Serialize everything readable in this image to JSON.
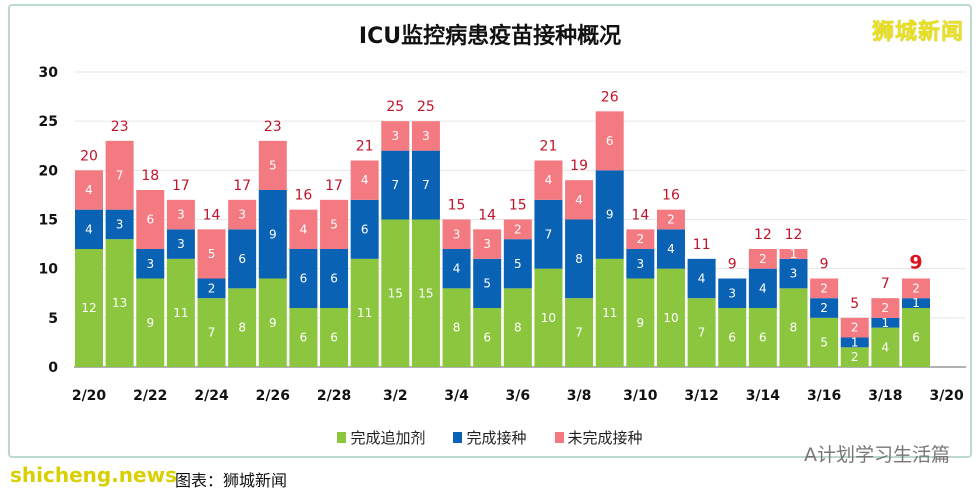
{
  "chart_data": {
    "type": "bar",
    "stacked": true,
    "title": "ICU监控病患疫苗接种概况",
    "categories": [
      "2/20",
      "2/21",
      "2/22",
      "2/23",
      "2/24",
      "2/25",
      "2/26",
      "2/27",
      "2/28",
      "3/1",
      "3/2",
      "3/3",
      "3/4",
      "3/5",
      "3/6",
      "3/7",
      "3/8",
      "3/9",
      "3/10",
      "3/11",
      "3/12",
      "3/13",
      "3/14",
      "3/15",
      "3/16",
      "3/17",
      "3/18",
      "3/19"
    ],
    "x_tick_labels": [
      "2/20",
      "2/22",
      "2/24",
      "2/26",
      "2/28",
      "3/2",
      "3/4",
      "3/6",
      "3/8",
      "3/10",
      "3/12",
      "3/14",
      "3/16",
      "3/18",
      "3/20"
    ],
    "series": [
      {
        "name": "完成追加剂",
        "color": "#8cc63f",
        "values": [
          12,
          13,
          9,
          11,
          7,
          8,
          9,
          6,
          6,
          11,
          15,
          15,
          8,
          6,
          8,
          10,
          7,
          11,
          9,
          10,
          7,
          6,
          6,
          8,
          5,
          2,
          4,
          6
        ]
      },
      {
        "name": "完成接种",
        "color": "#0a62b5",
        "values": [
          4,
          3,
          3,
          3,
          2,
          6,
          9,
          6,
          6,
          6,
          7,
          7,
          4,
          5,
          5,
          7,
          8,
          9,
          3,
          4,
          4,
          3,
          4,
          3,
          2,
          1,
          1,
          1
        ]
      },
      {
        "name": "未完成接种",
        "color": "#f47a82",
        "values": [
          4,
          7,
          6,
          3,
          5,
          3,
          5,
          4,
          5,
          4,
          3,
          3,
          3,
          3,
          2,
          4,
          4,
          6,
          2,
          2,
          0,
          0,
          2,
          1,
          2,
          2,
          2,
          2
        ]
      }
    ],
    "totals": [
      20,
      23,
      18,
      17,
      14,
      17,
      23,
      16,
      17,
      21,
      25,
      25,
      15,
      14,
      15,
      21,
      19,
      26,
      14,
      16,
      11,
      9,
      12,
      12,
      9,
      5,
      7,
      9
    ],
    "yticks": [
      0,
      5,
      10,
      15,
      20,
      25,
      30
    ],
    "ylim": [
      0,
      30
    ],
    "grid": true,
    "legend": "bottom"
  },
  "logo": "狮城新闻",
  "watermark": "A计划学习生活篇",
  "source": "图表：狮城新闻",
  "site": "shicheng.news"
}
